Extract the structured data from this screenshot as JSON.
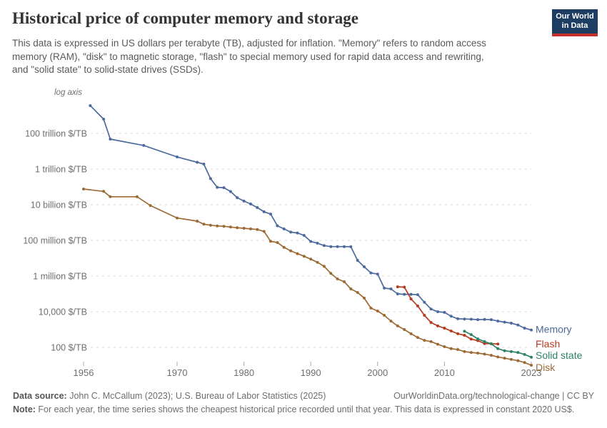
{
  "header": {
    "title": "Historical price of computer memory and storage",
    "subtitle_lines": [
      "This data is expressed in US dollars per terabyte (TB), adjusted for inflation. \"Memory\" refers to random access",
      "memory (RAM), \"disk\" to magnetic storage, \"flash\" to special memory used for rapid data access and rewriting,",
      "and \"solid state\" to solid-state drives (SSDs)."
    ],
    "logo": {
      "line1": "Our World",
      "line2": "in Data",
      "bg_color": "#1d3d63",
      "stripe_color": "#c5302b"
    }
  },
  "chart_data": {
    "type": "line",
    "title": "Historical price of computer memory and storage",
    "y_scale": "log",
    "log_axis_label": "log axis",
    "unit": "$/TB",
    "x_range": [
      1956,
      2023
    ],
    "x_ticks": [
      1956,
      1970,
      1980,
      1990,
      2000,
      2010,
      2023
    ],
    "grid": true,
    "legend_position": "right-end-labels",
    "y_gridlines": [
      {
        "label": "100 trillion $/TB",
        "value": 100000000000000.0
      },
      {
        "label": "1 trillion $/TB",
        "value": 1000000000000.0
      },
      {
        "label": "10 billion $/TB",
        "value": 10000000000.0
      },
      {
        "label": "100 million $/TB",
        "value": 100000000.0
      },
      {
        "label": "1 million $/TB",
        "value": 1000000.0
      },
      {
        "label": "10,000 $/TB",
        "value": 10000.0
      },
      {
        "label": "100 $/TB",
        "value": 100.0
      }
    ],
    "series": [
      {
        "name": "Memory",
        "color": "#4C6A9C",
        "label_dy": 4,
        "points": [
          [
            1957,
            3600000000000000.0
          ],
          [
            1959,
            630000000000000.0
          ],
          [
            1960,
            48000000000000.0
          ],
          [
            1965,
            21000000000000.0
          ],
          [
            1970,
            4800000000000.0
          ],
          [
            1973,
            2400000000000.0
          ],
          [
            1974,
            1900000000000.0
          ],
          [
            1975,
            290000000000.0
          ],
          [
            1976,
            95000000000.0
          ],
          [
            1977,
            90000000000.0
          ],
          [
            1978,
            55000000000.0
          ],
          [
            1979,
            25000000000.0
          ],
          [
            1980,
            16000000000.0
          ],
          [
            1981,
            11000000000.0
          ],
          [
            1982,
            6900000000.0
          ],
          [
            1983,
            4000000000.0
          ],
          [
            1984,
            3000000000.0
          ],
          [
            1985,
            660000000.0
          ],
          [
            1986,
            440000000.0
          ],
          [
            1987,
            290000000.0
          ],
          [
            1988,
            260000000.0
          ],
          [
            1989,
            190000000.0
          ],
          [
            1990,
            87000000.0
          ],
          [
            1991,
            70000000.0
          ],
          [
            1992,
            51000000.0
          ],
          [
            1993,
            45000000.0
          ],
          [
            1994,
            45000000.0
          ],
          [
            1995,
            45000000.0
          ],
          [
            1996,
            44000000.0
          ],
          [
            1997,
            7600000.0
          ],
          [
            1998,
            3300000.0
          ],
          [
            1999,
            1500000.0
          ],
          [
            2000,
            1300000.0
          ],
          [
            2001,
            210000.0
          ],
          [
            2002,
            190000.0
          ],
          [
            2003,
            100000.0
          ],
          [
            2004,
            95000.0
          ],
          [
            2005,
            95000.0
          ],
          [
            2006,
            90000.0
          ],
          [
            2007,
            34000.0
          ],
          [
            2008,
            14000.0
          ],
          [
            2009,
            10000.0
          ],
          [
            2010,
            9200.0
          ],
          [
            2011,
            5600.0
          ],
          [
            2012,
            4000.0
          ],
          [
            2013,
            3900.0
          ],
          [
            2014,
            3800.0
          ],
          [
            2015,
            3600.0
          ],
          [
            2016,
            3700.0
          ],
          [
            2017,
            3600.0
          ],
          [
            2018,
            3000.0
          ],
          [
            2019,
            2600.0
          ],
          [
            2020,
            2300.0
          ],
          [
            2021,
            1800.0
          ],
          [
            2022,
            1200.0
          ],
          [
            2023,
            950.0
          ]
        ]
      },
      {
        "name": "Flash",
        "color": "#B63A21",
        "label_dy": 5,
        "points": [
          [
            2003,
            250000.0
          ],
          [
            2004,
            240000.0
          ],
          [
            2005,
            52000.0
          ],
          [
            2006,
            21000.0
          ],
          [
            2007,
            6300.0
          ],
          [
            2008,
            2500.0
          ],
          [
            2009,
            1600.0
          ],
          [
            2010,
            1200.0
          ],
          [
            2011,
            830.0
          ],
          [
            2012,
            580.0
          ],
          [
            2013,
            480.0
          ],
          [
            2014,
            290.0
          ],
          [
            2015,
            240.0
          ],
          [
            2016,
            165.0
          ],
          [
            2017,
            160.0
          ],
          [
            2018,
            155.0
          ]
        ]
      },
      {
        "name": "Solid state",
        "color": "#2C8465",
        "label_dy": 2,
        "points": [
          [
            2013,
            800.0
          ],
          [
            2014,
            520.0
          ],
          [
            2015,
            300.0
          ],
          [
            2016,
            210.0
          ],
          [
            2017,
            160.0
          ],
          [
            2018,
            85.0
          ],
          [
            2019,
            65.0
          ],
          [
            2020,
            58.0
          ],
          [
            2021,
            52.0
          ],
          [
            2022,
            40.0
          ],
          [
            2023,
            28.0
          ]
        ]
      },
      {
        "name": "Disk",
        "color": "#9C6B35",
        "label_dy": 8,
        "points": [
          [
            1956,
            76000000000.0
          ],
          [
            1959,
            56000000000.0
          ],
          [
            1960,
            28000000000.0
          ],
          [
            1964,
            28000000000.0
          ],
          [
            1966,
            9000000000.0
          ],
          [
            1970,
            1800000000.0
          ],
          [
            1973,
            1200000000.0
          ],
          [
            1974,
            810000000.0
          ],
          [
            1975,
            710000000.0
          ],
          [
            1976,
            650000000.0
          ],
          [
            1977,
            620000000.0
          ],
          [
            1978,
            560000000.0
          ],
          [
            1979,
            510000000.0
          ],
          [
            1980,
            480000000.0
          ],
          [
            1981,
            440000000.0
          ],
          [
            1982,
            410000000.0
          ],
          [
            1983,
            320000000.0
          ],
          [
            1984,
            89000000.0
          ],
          [
            1985,
            76000000.0
          ],
          [
            1986,
            41000000.0
          ],
          [
            1987,
            26000000.0
          ],
          [
            1988,
            18000000.0
          ],
          [
            1989,
            13000000.0
          ],
          [
            1990,
            8900000.0
          ],
          [
            1991,
            5900000.0
          ],
          [
            1992,
            3500000.0
          ],
          [
            1993,
            1400000.0
          ],
          [
            1994,
            690000.0
          ],
          [
            1995,
            480000.0
          ],
          [
            1996,
            190000.0
          ],
          [
            1997,
            120000.0
          ],
          [
            1998,
            58000.0
          ],
          [
            1999,
            16000.0
          ],
          [
            2000,
            11000.0
          ],
          [
            2001,
            6300.0
          ],
          [
            2002,
            3000.0
          ],
          [
            2003,
            1600.0
          ],
          [
            2004,
            1000.0
          ],
          [
            2005,
            580.0
          ],
          [
            2006,
            360.0
          ],
          [
            2007,
            250.0
          ],
          [
            2008,
            210.0
          ],
          [
            2009,
            150.0
          ],
          [
            2010,
            110.0
          ],
          [
            2011,
            85.0
          ],
          [
            2012,
            76.0
          ],
          [
            2013,
            58.0
          ],
          [
            2014,
            52.0
          ],
          [
            2015,
            48.0
          ],
          [
            2016,
            42.0
          ],
          [
            2017,
            36.0
          ],
          [
            2018,
            29.0
          ],
          [
            2019,
            25.0
          ],
          [
            2020,
            21.0
          ],
          [
            2021,
            18.0
          ],
          [
            2022,
            14.0
          ],
          [
            2023,
            10.0
          ]
        ]
      }
    ]
  },
  "footer": {
    "source_label": "Data source:",
    "source_text": " John C. McCallum (2023); U.S. Bureau of Labor Statistics (2025)",
    "link_text": "OurWorldinData.org/technological-change | CC BY",
    "note_label": "Note:",
    "note_text": " For each year, the time series shows the cheapest historical price recorded until that year. This data is expressed in constant 2020 US$."
  }
}
